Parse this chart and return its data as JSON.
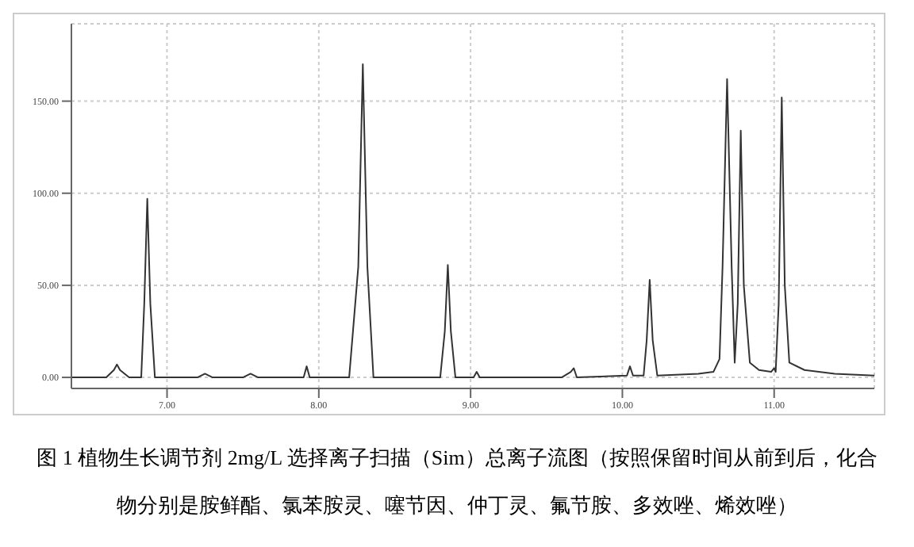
{
  "chart_data": {
    "type": "line",
    "x": [
      6.37,
      6.6,
      6.65,
      6.67,
      6.69,
      6.75,
      6.83,
      6.85,
      6.87,
      6.89,
      6.92,
      7.0,
      7.2,
      7.25,
      7.3,
      7.5,
      7.55,
      7.6,
      7.9,
      7.92,
      7.94,
      8.2,
      8.26,
      8.29,
      8.32,
      8.36,
      8.5,
      8.8,
      8.83,
      8.85,
      8.87,
      8.9,
      9.02,
      9.04,
      9.06,
      9.6,
      9.66,
      9.68,
      9.7,
      10.03,
      10.05,
      10.07,
      10.14,
      10.16,
      10.18,
      10.2,
      10.23,
      10.5,
      10.6,
      10.64,
      10.66,
      10.69,
      10.72,
      10.74,
      10.76,
      10.78,
      10.8,
      10.84,
      10.9,
      10.98,
      11.0,
      11.01,
      11.03,
      11.05,
      11.07,
      11.1,
      11.2,
      11.4,
      11.66
    ],
    "series": [
      {
        "color": "#333333",
        "values": [
          0,
          0,
          4,
          7,
          4,
          0,
          0,
          40,
          97,
          40,
          0,
          0,
          0,
          2,
          0,
          0,
          2,
          0,
          0,
          6,
          0,
          0,
          60,
          170,
          60,
          0,
          0,
          0,
          25,
          61,
          25,
          0,
          0,
          3,
          0,
          0,
          3,
          5,
          0,
          1,
          6,
          1,
          1,
          20,
          53,
          20,
          1,
          2,
          3,
          10,
          60,
          162,
          60,
          8,
          40,
          134,
          50,
          8,
          4,
          3,
          5,
          3,
          40,
          152,
          50,
          8,
          4,
          2,
          1
        ]
      }
    ],
    "xlim": [
      6.37,
      11.66
    ],
    "ylim": [
      -6,
      192
    ],
    "xticks": [
      {
        "value": 7,
        "label": "7.00"
      },
      {
        "value": 8,
        "label": "8.00"
      },
      {
        "value": 9,
        "label": "9.00"
      },
      {
        "value": 10,
        "label": "10.00"
      },
      {
        "value": 11,
        "label": "11.00"
      }
    ],
    "yticks": [
      {
        "value": 0,
        "label": "0.00"
      },
      {
        "value": 50,
        "label": "50.00"
      },
      {
        "value": 100,
        "label": "100.00"
      },
      {
        "value": 150,
        "label": "150.00"
      }
    ],
    "grid": true,
    "marker": "none",
    "line_style": "solid",
    "legend": false,
    "annotations": [
      "图 1  植物生长调节剂 2mg/L 选择离子扫描（Sim）总离子流图（按照保留时间从前到后，化合物分别是胺鲜酯、氯苯胺灵、噻节因、仲丁灵、氟节胺、多效唑、烯效唑）"
    ]
  }
}
